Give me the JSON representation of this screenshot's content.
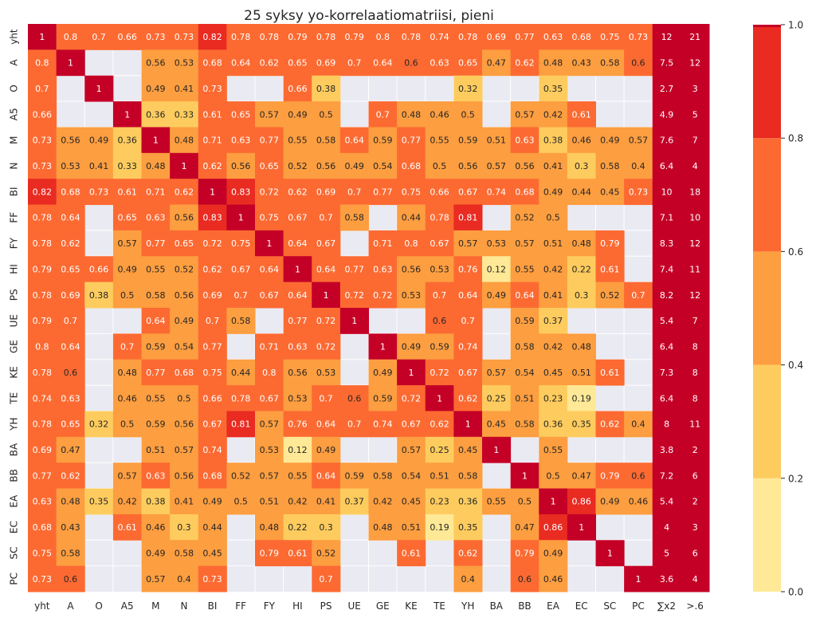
{
  "chart_data": {
    "type": "heatmap",
    "title": "25 syksy yo-korrelaatiomatriisi, pieni",
    "x_labels": [
      "yht",
      "A",
      "O",
      "A5",
      "M",
      "N",
      "BI",
      "FF",
      "FY",
      "HI",
      "PS",
      "UE",
      "GE",
      "KE",
      "TE",
      "YH",
      "BA",
      "BB",
      "EA",
      "EC",
      "SC",
      "PC",
      "∑x2",
      ">.6"
    ],
    "y_labels": [
      "yht",
      "A",
      "O",
      "A5",
      "M",
      "N",
      "BI",
      "FF",
      "FY",
      "HI",
      "PS",
      "UE",
      "GE",
      "KE",
      "TE",
      "YH",
      "BA",
      "BB",
      "EA",
      "EC",
      "SC",
      "PC"
    ],
    "values": [
      [
        1,
        0.8,
        0.7,
        0.66,
        0.73,
        0.73,
        0.82,
        0.78,
        0.78,
        0.79,
        0.78,
        0.79,
        0.8,
        0.78,
        0.74,
        0.78,
        0.69,
        0.77,
        0.63,
        0.68,
        0.75,
        0.73,
        12,
        21
      ],
      [
        0.8,
        1,
        null,
        null,
        0.56,
        0.53,
        0.68,
        0.64,
        0.62,
        0.65,
        0.69,
        0.7,
        0.64,
        0.6,
        0.63,
        0.65,
        0.47,
        0.62,
        0.48,
        0.43,
        0.58,
        0.6,
        7.5,
        12
      ],
      [
        0.7,
        null,
        1,
        null,
        0.49,
        0.41,
        0.73,
        null,
        null,
        0.66,
        0.38,
        null,
        null,
        null,
        null,
        0.32,
        null,
        null,
        0.35,
        null,
        null,
        null,
        2.7,
        3
      ],
      [
        0.66,
        null,
        null,
        1,
        0.36,
        0.33,
        0.61,
        0.65,
        0.57,
        0.49,
        0.5,
        null,
        0.7,
        0.48,
        0.46,
        0.5,
        null,
        0.57,
        0.42,
        0.61,
        null,
        null,
        4.9,
        5
      ],
      [
        0.73,
        0.56,
        0.49,
        0.36,
        1,
        0.48,
        0.71,
        0.63,
        0.77,
        0.55,
        0.58,
        0.64,
        0.59,
        0.77,
        0.55,
        0.59,
        0.51,
        0.63,
        0.38,
        0.46,
        0.49,
        0.57,
        7.6,
        7
      ],
      [
        0.73,
        0.53,
        0.41,
        0.33,
        0.48,
        1,
        0.62,
        0.56,
        0.65,
        0.52,
        0.56,
        0.49,
        0.54,
        0.68,
        0.5,
        0.56,
        0.57,
        0.56,
        0.41,
        0.3,
        0.58,
        0.4,
        6.4,
        4
      ],
      [
        0.82,
        0.68,
        0.73,
        0.61,
        0.71,
        0.62,
        1,
        0.83,
        0.72,
        0.62,
        0.69,
        0.7,
        0.77,
        0.75,
        0.66,
        0.67,
        0.74,
        0.68,
        0.49,
        0.44,
        0.45,
        0.73,
        10,
        18
      ],
      [
        0.78,
        0.64,
        null,
        0.65,
        0.63,
        0.56,
        0.83,
        1,
        0.75,
        0.67,
        0.7,
        0.58,
        null,
        0.44,
        0.78,
        0.81,
        null,
        0.52,
        0.5,
        null,
        null,
        null,
        7.1,
        10
      ],
      [
        0.78,
        0.62,
        null,
        0.57,
        0.77,
        0.65,
        0.72,
        0.75,
        1,
        0.64,
        0.67,
        null,
        0.71,
        0.8,
        0.67,
        0.57,
        0.53,
        0.57,
        0.51,
        0.48,
        0.79,
        null,
        8.3,
        12
      ],
      [
        0.79,
        0.65,
        0.66,
        0.49,
        0.55,
        0.52,
        0.62,
        0.67,
        0.64,
        1,
        0.64,
        0.77,
        0.63,
        0.56,
        0.53,
        0.76,
        0.12,
        0.55,
        0.42,
        0.22,
        0.61,
        null,
        7.4,
        11
      ],
      [
        0.78,
        0.69,
        0.38,
        0.5,
        0.58,
        0.56,
        0.69,
        0.7,
        0.67,
        0.64,
        1,
        0.72,
        0.72,
        0.53,
        0.7,
        0.64,
        0.49,
        0.64,
        0.41,
        0.3,
        0.52,
        0.7,
        8.2,
        12
      ],
      [
        0.79,
        0.7,
        null,
        null,
        0.64,
        0.49,
        0.7,
        0.58,
        null,
        0.77,
        0.72,
        1,
        null,
        null,
        0.6,
        0.7,
        null,
        0.59,
        0.37,
        null,
        null,
        null,
        5.4,
        7
      ],
      [
        0.8,
        0.64,
        null,
        0.7,
        0.59,
        0.54,
        0.77,
        null,
        0.71,
        0.63,
        0.72,
        null,
        1,
        0.49,
        0.59,
        0.74,
        null,
        0.58,
        0.42,
        0.48,
        null,
        null,
        6.4,
        8
      ],
      [
        0.78,
        0.6,
        null,
        0.48,
        0.77,
        0.68,
        0.75,
        0.44,
        0.8,
        0.56,
        0.53,
        null,
        0.49,
        1,
        0.72,
        0.67,
        0.57,
        0.54,
        0.45,
        0.51,
        0.61,
        null,
        7.3,
        8
      ],
      [
        0.74,
        0.63,
        null,
        0.46,
        0.55,
        0.5,
        0.66,
        0.78,
        0.67,
        0.53,
        0.7,
        0.6,
        0.59,
        0.72,
        1,
        0.62,
        0.25,
        0.51,
        0.23,
        0.19,
        null,
        null,
        6.4,
        8
      ],
      [
        0.78,
        0.65,
        0.32,
        0.5,
        0.59,
        0.56,
        0.67,
        0.81,
        0.57,
        0.76,
        0.64,
        0.7,
        0.74,
        0.67,
        0.62,
        1,
        0.45,
        0.58,
        0.36,
        0.35,
        0.62,
        0.4,
        8,
        11
      ],
      [
        0.69,
        0.47,
        null,
        null,
        0.51,
        0.57,
        0.74,
        null,
        0.53,
        0.12,
        0.49,
        null,
        null,
        0.57,
        0.25,
        0.45,
        1,
        null,
        0.55,
        null,
        null,
        null,
        3.8,
        2
      ],
      [
        0.77,
        0.62,
        null,
        0.57,
        0.63,
        0.56,
        0.68,
        0.52,
        0.57,
        0.55,
        0.64,
        0.59,
        0.58,
        0.54,
        0.51,
        0.58,
        null,
        1,
        0.5,
        0.47,
        0.79,
        0.6,
        7.2,
        6
      ],
      [
        0.63,
        0.48,
        0.35,
        0.42,
        0.38,
        0.41,
        0.49,
        0.5,
        0.51,
        0.42,
        0.41,
        0.37,
        0.42,
        0.45,
        0.23,
        0.36,
        0.55,
        0.5,
        1,
        0.86,
        0.49,
        0.46,
        5.4,
        2
      ],
      [
        0.68,
        0.43,
        null,
        0.61,
        0.46,
        0.3,
        0.44,
        null,
        0.48,
        0.22,
        0.3,
        null,
        0.48,
        0.51,
        0.19,
        0.35,
        null,
        0.47,
        0.86,
        1,
        null,
        null,
        4,
        3
      ],
      [
        0.75,
        0.58,
        null,
        null,
        0.49,
        0.58,
        0.45,
        null,
        0.79,
        0.61,
        0.52,
        null,
        null,
        0.61,
        null,
        0.62,
        null,
        0.79,
        0.49,
        null,
        1,
        null,
        5,
        6
      ],
      [
        0.73,
        0.6,
        null,
        null,
        0.57,
        0.4,
        0.73,
        null,
        null,
        null,
        0.7,
        null,
        null,
        null,
        null,
        0.4,
        null,
        0.6,
        0.46,
        null,
        null,
        1,
        3.6,
        4
      ]
    ],
    "colorbar": {
      "range": [
        0,
        1.0
      ],
      "ticks": [
        "0.0",
        "0.2",
        "0.4",
        "0.6",
        "0.8",
        "1.0"
      ],
      "bins": [
        {
          "from": 0.0,
          "to": 0.2,
          "color": "#ffe996"
        },
        {
          "from": 0.2,
          "to": 0.4,
          "color": "#fecc5e"
        },
        {
          "from": 0.4,
          "to": 0.6,
          "color": "#fd9e40"
        },
        {
          "from": 0.6,
          "to": 0.8,
          "color": "#fc6a32"
        },
        {
          "from": 0.8,
          "to": 1.0,
          "color": "#e92b22"
        }
      ],
      "max_color": "#c40027"
    },
    "missing_color": "#eaeaf2"
  }
}
